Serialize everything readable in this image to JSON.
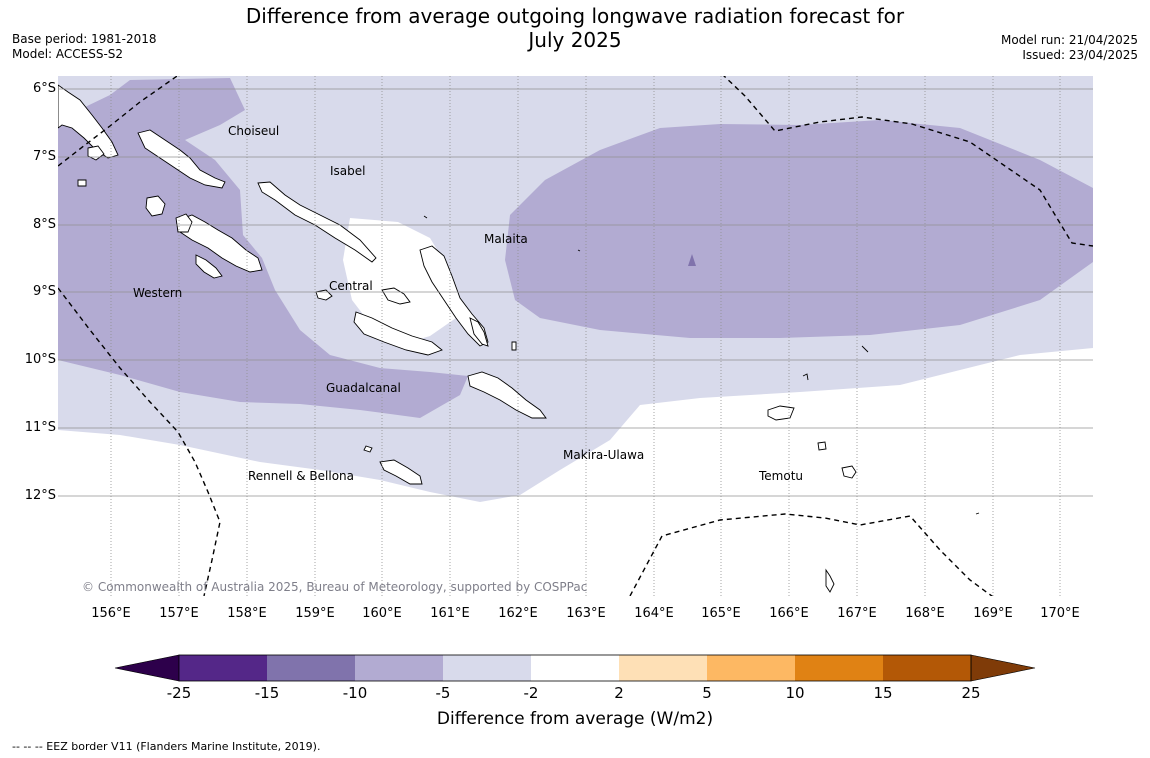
{
  "title_line1": "Difference from average outgoing longwave radiation forecast for",
  "title_line2": "July 2025",
  "base_period": "Base period: 1981-2018",
  "model": "Model: ACCESS-S2",
  "model_run": "Model run: 21/04/2025",
  "issued": "Issued: 23/04/2025",
  "lat_labels": [
    "6°S",
    "7°S",
    "8°S",
    "9°S",
    "10°S",
    "11°S",
    "12°S"
  ],
  "lon_labels": [
    "156°E",
    "157°E",
    "158°E",
    "159°E",
    "160°E",
    "161°E",
    "162°E",
    "163°E",
    "164°E",
    "165°E",
    "166°E",
    "167°E",
    "168°E",
    "169°E",
    "170°E"
  ],
  "regions": [
    "Choiseul",
    "Isabel",
    "Malaita",
    "Western",
    "Central",
    "Guadalcanal",
    "Makira-Ulawa",
    "Rennell & Bellona",
    "Temotu"
  ],
  "copyright": "© Commonwealth of Australia 2025, Bureau of Meteorology, supported by COSPPac",
  "colorbar": {
    "ticks": [
      "-25",
      "-15",
      "-10",
      "-5",
      "-2",
      "2",
      "5",
      "10",
      "15",
      "25"
    ],
    "colors": [
      "#542788",
      "#8073ac",
      "#b2abd2",
      "#d8daeb",
      "#ffffff",
      "#fee0b6",
      "#fdb863",
      "#e08214",
      "#b35806"
    ],
    "under_color": "#2d004b",
    "over_color": "#7f3b08",
    "label": "Difference from average (W/m2)"
  },
  "eez_legend": "-- -- -- EEZ border V11 (Flanders Marine Institute, 2019)."
}
